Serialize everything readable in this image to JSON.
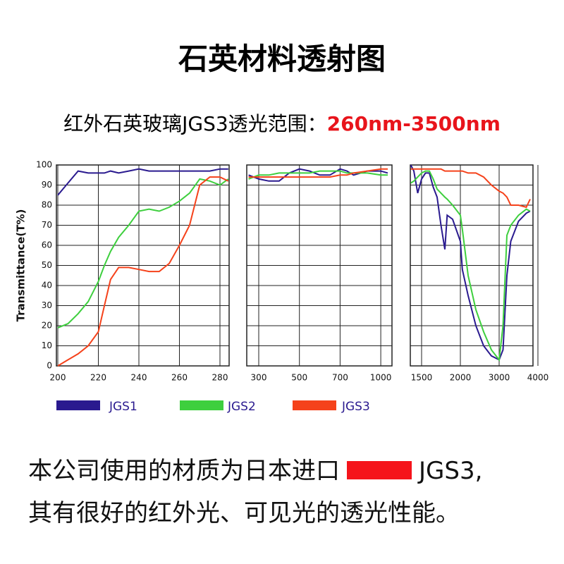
{
  "header": {
    "title": "石英材料透射图",
    "subtitle": "红外石英玻璃JGS3透光范围：",
    "highlight": "260nm-3500nm"
  },
  "chart_data": {
    "type": "line",
    "ylabel": "Transmittance(T%)",
    "ylim": [
      0,
      100
    ],
    "yticks": [
      0,
      10,
      20,
      30,
      40,
      50,
      60,
      70,
      80,
      90,
      100
    ],
    "grid": true,
    "panels": [
      {
        "xlim": [
          199,
          285.5
        ],
        "xticks": [
          200,
          220,
          240,
          260,
          280
        ],
        "x": [
          200,
          205,
          210,
          215,
          220,
          223,
          226,
          230,
          235,
          240,
          245,
          250,
          255,
          260,
          265,
          270,
          275,
          280,
          285
        ]
      },
      {
        "xlim": [
          241,
          1080
        ],
        "xticks": [
          300,
          500,
          700,
          1000
        ],
        "x": [
          250,
          300,
          350,
          400,
          450,
          500,
          550,
          600,
          650,
          700,
          750,
          800,
          900,
          1000,
          1050
        ]
      },
      {
        "xlim": [
          1355,
          3830
        ],
        "xticks": [
          1500,
          2000,
          3000,
          4000
        ],
        "x": [
          1360,
          1400,
          1450,
          1500,
          1550,
          1600,
          1650,
          1700,
          1750,
          1800,
          1830,
          1900,
          2000,
          2050,
          2200,
          2400,
          2600,
          2800,
          3000,
          3100,
          3200,
          3300,
          3500,
          3700,
          3800
        ]
      }
    ],
    "series": [
      {
        "name": "JGS1",
        "color": "#2a1a8f",
        "values": [
          [
            85,
            91,
            97,
            96,
            96,
            96,
            97,
            96,
            97,
            98,
            97,
            97,
            97,
            97,
            97,
            97,
            97,
            98,
            98
          ],
          [
            95,
            93,
            92,
            92,
            96,
            98,
            97,
            95,
            95,
            98,
            97,
            95,
            97,
            97,
            96
          ],
          [
            100,
            97,
            86,
            93,
            96,
            96,
            89,
            84,
            70,
            58,
            75,
            73,
            62,
            48,
            35,
            20,
            10,
            5,
            3,
            8,
            45,
            62,
            72,
            76,
            77
          ]
        ]
      },
      {
        "name": "JGS2",
        "color": "#3ecf3e",
        "values": [
          [
            19,
            21,
            26,
            32,
            42,
            50,
            57,
            64,
            70,
            77,
            78,
            77,
            79,
            82,
            86,
            93,
            92,
            90,
            93
          ],
          [
            93,
            95,
            95,
            96,
            96,
            96,
            96,
            97,
            97,
            97,
            96,
            96,
            96,
            95,
            95
          ],
          [
            91,
            92,
            94,
            96,
            97,
            97,
            93,
            88,
            86,
            84,
            83,
            80,
            75,
            68,
            45,
            28,
            17,
            8,
            3,
            20,
            65,
            70,
            75,
            78,
            77
          ]
        ]
      },
      {
        "name": "JGS3",
        "color": "#f5421b",
        "values": [
          [
            0,
            3,
            6,
            10,
            17,
            30,
            43,
            49,
            49,
            48,
            47,
            47,
            51,
            60,
            70,
            90,
            94,
            94,
            92
          ],
          [
            94,
            94,
            94,
            94,
            94,
            94,
            94,
            94,
            94,
            95,
            95,
            96,
            97,
            98,
            98
          ],
          [
            98,
            98,
            98,
            98,
            98,
            98,
            98,
            98,
            98,
            97,
            97,
            97,
            97,
            97,
            96,
            96,
            94,
            90,
            87,
            86,
            84,
            80,
            80,
            79,
            83
          ]
        ]
      }
    ]
  },
  "footer": {
    "line1": "本公司使用的材质为日本进口",
    "line1_end": "JGS3,",
    "line2": "其有很好的红外光、可见光的透光性能。"
  }
}
